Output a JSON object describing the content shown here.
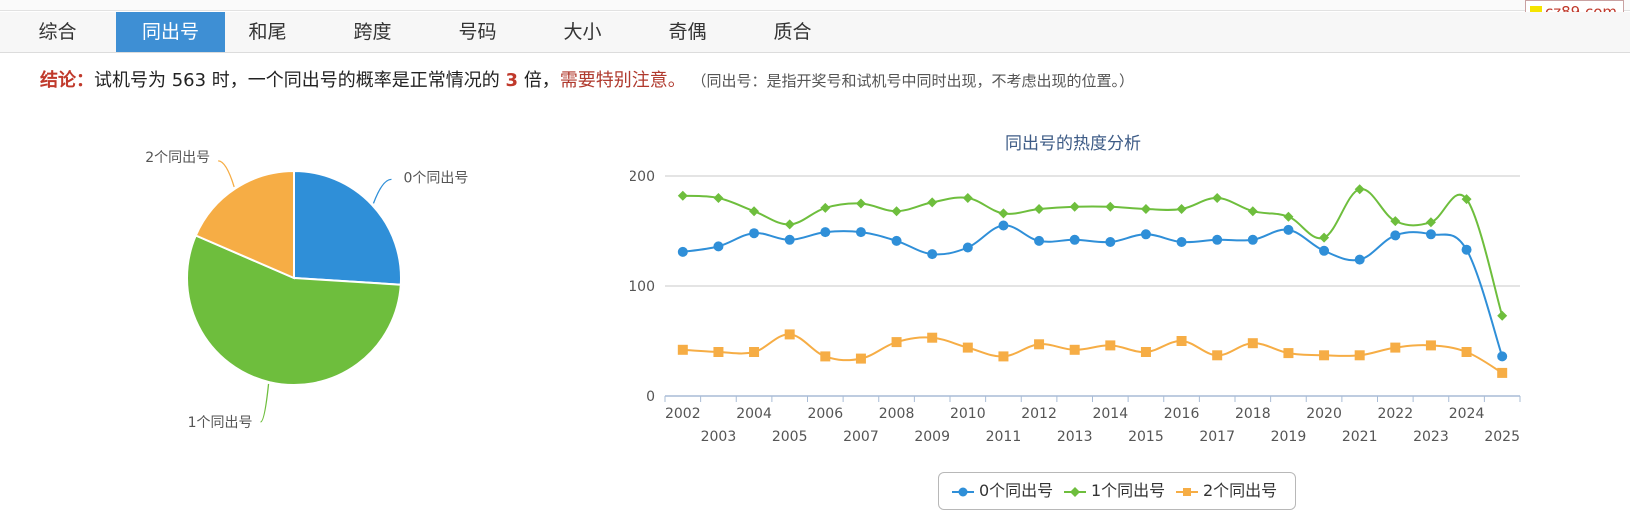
{
  "brand": {
    "text": "cz89.com"
  },
  "tabs": [
    "综合",
    "同出号",
    "和尾",
    "跨度",
    "号码",
    "大小",
    "奇偶",
    "质合"
  ],
  "active_tab": 1,
  "conclusion": {
    "label": "结论：",
    "text1": "试机号为 563 时，一个同出号的概率是正常情况的",
    "multiple": "3",
    "text2": "倍，",
    "warning": "需要特别注意。",
    "note": "（同出号：是指开奖号和试机号中同时出现，不考虑出现的位置。）"
  },
  "chart_data": [
    {
      "type": "pie",
      "slices": [
        {
          "label": "0个同出号",
          "value": 26,
          "color": "#2f8fd8"
        },
        {
          "label": "1个同出号",
          "value": 55.5,
          "color": "#6ebe3d"
        },
        {
          "label": "2个同出号",
          "value": 18.5,
          "color": "#f6ad45"
        }
      ]
    },
    {
      "type": "line",
      "title": "同出号的热度分析",
      "x": [
        "2002",
        "2003",
        "2004",
        "2005",
        "2006",
        "2007",
        "2008",
        "2009",
        "2010",
        "2011",
        "2012",
        "2013",
        "2014",
        "2015",
        "2016",
        "2017",
        "2018",
        "2019",
        "2020",
        "2021",
        "2022",
        "2023",
        "2024",
        "2025"
      ],
      "ylim": [
        0,
        200
      ],
      "yticks": [
        "0",
        "100",
        "200"
      ],
      "grid": true,
      "legend": "bottom-center",
      "series": [
        {
          "name": "0个同出号",
          "color": "#2f8fd8",
          "marker": "circle",
          "values": [
            131,
            136,
            148,
            142,
            149,
            149,
            141,
            129,
            135,
            155,
            141,
            142,
            140,
            147,
            140,
            142,
            142,
            151,
            132,
            124,
            146,
            147,
            133,
            36
          ]
        },
        {
          "name": "1个同出号",
          "color": "#6ebe3d",
          "marker": "diamond",
          "values": [
            182,
            180,
            168,
            156,
            171,
            175,
            168,
            176,
            180,
            166,
            170,
            172,
            172,
            170,
            170,
            180,
            168,
            163,
            144,
            188,
            159,
            158,
            179,
            73
          ]
        },
        {
          "name": "2个同出号",
          "color": "#f6ad45",
          "marker": "square",
          "values": [
            42,
            40,
            40,
            56,
            36,
            34,
            49,
            53,
            44,
            36,
            47,
            42,
            46,
            40,
            50,
            37,
            48,
            39,
            37,
            37,
            44,
            46,
            40,
            21
          ]
        }
      ]
    }
  ]
}
